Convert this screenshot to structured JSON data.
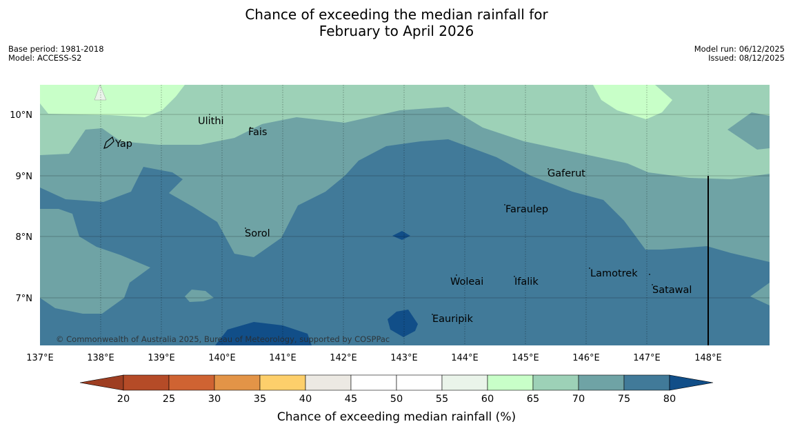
{
  "title": {
    "line1": "Chance of exceeding the median rainfall for",
    "line2": "February to April 2026"
  },
  "meta_left": {
    "base_period": "Base period: 1981-2018",
    "model": "Model: ACCESS-S2"
  },
  "meta_right": {
    "model_run": "Model run: 06/12/2025",
    "issued": "Issued: 08/12/2025"
  },
  "axes": {
    "x_ticks": [
      "137°E",
      "138°E",
      "139°E",
      "140°E",
      "141°E",
      "142°E",
      "143°E",
      "144°E",
      "145°E",
      "146°E",
      "147°E",
      "148°E"
    ],
    "y_ticks": [
      "10°N",
      "9°N",
      "8°N",
      "7°N"
    ]
  },
  "places": [
    "Ulithi",
    "Fais",
    "Yap",
    "Gaferut",
    "Faraulep",
    "Sorol",
    "Lamotrek",
    "Woleai",
    "Ifalik",
    "Satawal",
    "Eauripik"
  ],
  "copyright": "© Commonwealth of Australia 2025, Bureau of Meteorology, supported by COSPPac",
  "legend": {
    "title": "Chance of exceeding median rainfall (%)",
    "ticks": [
      "20",
      "25",
      "30",
      "35",
      "40",
      "45",
      "50",
      "55",
      "60",
      "65",
      "70",
      "75",
      "80"
    ],
    "colors": {
      "below20": "#9e3e22",
      "c20_25": "#b54b27",
      "c25_30": "#cf6332",
      "c30_35": "#e39447",
      "c35_40": "#fdcf6b",
      "c40_45": "#ece9e3",
      "c45_50": "#ffffff",
      "c50_55": "#ffffff",
      "c55_60": "#eaf4ea",
      "c60_65": "#c8ffc8",
      "c65_70": "#9dd1b7",
      "c70_75": "#6fa3a5",
      "c75_80": "#417a99",
      "above80": "#114e88"
    }
  }
}
